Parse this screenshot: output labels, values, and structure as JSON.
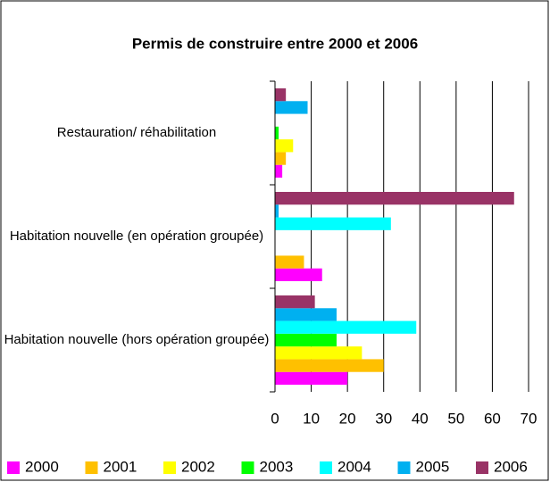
{
  "chart_data": {
    "type": "bar",
    "orientation": "horizontal",
    "title": "Permis de construire entre 2000 et 2006",
    "categories": [
      "Habitation nouvelle (hors opération groupée)",
      "Habitation nouvelle (en opération groupée)",
      "Restauration/ réhabilitation"
    ],
    "series": [
      {
        "name": "2000",
        "color": "#ff00ff",
        "values": [
          20,
          13,
          2
        ]
      },
      {
        "name": "2001",
        "color": "#ffc000",
        "values": [
          30,
          8,
          3
        ]
      },
      {
        "name": "2002",
        "color": "#ffff00",
        "values": [
          24,
          0,
          5
        ]
      },
      {
        "name": "2003",
        "color": "#00ff00",
        "values": [
          17,
          0,
          1
        ]
      },
      {
        "name": "2004",
        "color": "#00ffff",
        "values": [
          39,
          32,
          0
        ]
      },
      {
        "name": "2005",
        "color": "#00b0f0",
        "values": [
          17,
          1,
          9
        ]
      },
      {
        "name": "2006",
        "color": "#993366",
        "values": [
          11,
          66,
          3
        ]
      }
    ],
    "xlim": [
      0,
      70
    ],
    "xticks": [
      0,
      10,
      20,
      30,
      40,
      50,
      60,
      70
    ],
    "grid": true,
    "legend": "bottom"
  }
}
